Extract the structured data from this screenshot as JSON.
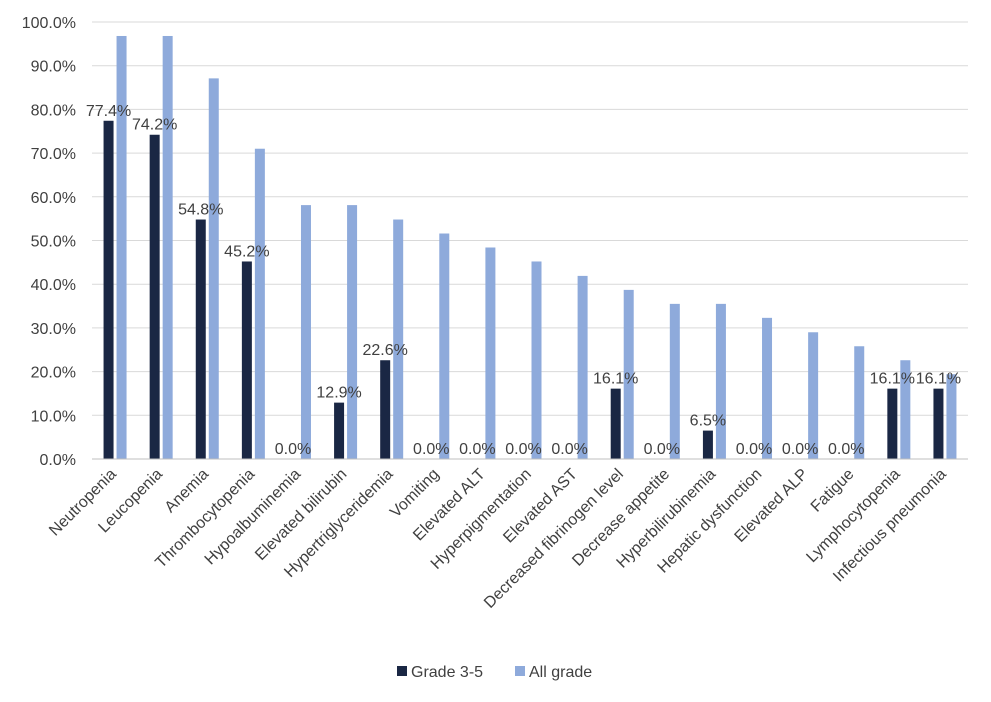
{
  "chart_data": {
    "type": "bar",
    "title": "",
    "xlabel": "",
    "ylabel": "",
    "ylim": [
      0,
      100
    ],
    "y_ticks": [
      "0.0%",
      "10.0%",
      "20.0%",
      "30.0%",
      "40.0%",
      "50.0%",
      "60.0%",
      "70.0%",
      "80.0%",
      "90.0%",
      "100.0%"
    ],
    "categories": [
      "Neutropenia",
      "Leucopenia",
      "Anemia",
      "Thrombocytopenia",
      "Hypoalbuminemia",
      "Elevated bilirubin",
      "Hypertriglyceridemia",
      "Vomiting",
      "Elevated ALT",
      "Hyperpigmentation",
      "Elevated AST",
      "Decreased fibrinogen level",
      "Decrease appetite",
      "Hyperbilirubinemia",
      "Hepatic dysfunction",
      "Elevated ALP",
      "Fatigue",
      "Lymphocytopenia",
      "Infectious pneumonia"
    ],
    "series": [
      {
        "name": "Grade 3-5",
        "color": "#1a2744",
        "values": [
          77.4,
          74.2,
          54.8,
          45.2,
          0.0,
          12.9,
          22.6,
          0.0,
          0.0,
          0.0,
          0.0,
          16.1,
          0.0,
          6.5,
          0.0,
          0.0,
          0.0,
          16.1,
          16.1
        ],
        "data_labels": [
          "77.4%",
          "74.2%",
          "54.8%",
          "45.2%",
          "0.0%",
          "12.9%",
          "22.6%",
          "0.0%",
          "0.0%",
          "0.0%",
          "0.0%",
          "16.1%",
          "0.0%",
          "6.5%",
          "0.0%",
          "0.0%",
          "0.0%",
          "16.1%",
          "16.1%"
        ]
      },
      {
        "name": "All grade",
        "color": "#8eaadb",
        "values": [
          96.8,
          96.8,
          87.1,
          71.0,
          58.1,
          58.1,
          54.8,
          51.6,
          48.4,
          45.2,
          41.9,
          38.7,
          35.5,
          35.5,
          32.3,
          29.0,
          25.8,
          22.6,
          19.4
        ]
      }
    ],
    "grid": true,
    "legend_position": "bottom"
  }
}
